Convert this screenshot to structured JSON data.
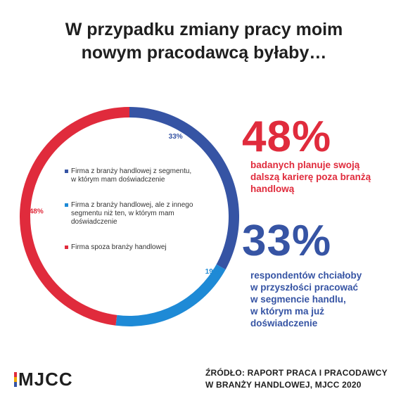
{
  "title": {
    "line1": "W przypadku zmiany pracy moim",
    "line2": "nowym pracodawcą byłaby…"
  },
  "chart_data": {
    "type": "pie",
    "subtype": "donut",
    "categories": [
      "Firma z branży handlowej z segmentu, w którym mam doświadczenie",
      "Firma z branży handlowej, ale z innego segmentu niż ten, w którym mam doświadczenie",
      "Firma spoza branży handlowej"
    ],
    "values": [
      33,
      19,
      48
    ],
    "value_labels": [
      "33%",
      "19%",
      "48%"
    ],
    "colors": [
      "#3654a4",
      "#1e8ad6",
      "#e02b3c"
    ],
    "legend_position": "inside-center"
  },
  "legend": {
    "items": [
      {
        "lines": [
          "Firma z branży handlowej z segmentu,",
          "w którym mam doświadczenie"
        ],
        "color": "#3654a4"
      },
      {
        "lines": [
          "Firma z branży handlowej, ale z innego",
          "segmentu niż ten, w którym mam",
          "doświadczenie"
        ],
        "color": "#1e8ad6"
      },
      {
        "lines": [
          "Firma spoza branży handlowej"
        ],
        "color": "#e02b3c"
      }
    ]
  },
  "stats": [
    {
      "number": "48%",
      "color": "#e02b3c",
      "lines": [
        "badanych planuje swoją",
        "dalszą karierę poza branżą",
        "handlową"
      ]
    },
    {
      "number": "33%",
      "color": "#3654a4",
      "lines": [
        "respondentów chciałoby",
        "w przyszłości pracować",
        "w segmencie handlu,",
        "w którym ma już",
        "doświadczenie"
      ]
    }
  ],
  "footer": {
    "source_line1": "ŹRÓDŁO: RAPORT PRACA I PRACODAWCY",
    "source_line2": "W BRANŻY HANDLOWEJ, MJCC 2020",
    "logo_text": "MJCC",
    "logo_colors": [
      "#e02b3c",
      "#f2a900",
      "#3654a4"
    ]
  }
}
